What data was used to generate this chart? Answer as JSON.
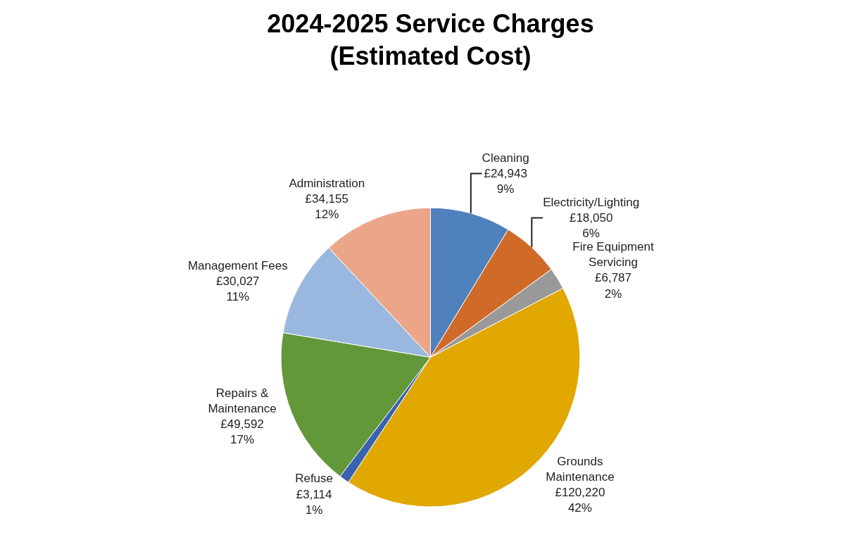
{
  "chart_data": {
    "type": "pie",
    "title": "2024-2025 Service Charges\n(Estimated Cost)",
    "categories": [
      "Cleaning",
      "Electricity/Lighting",
      "Fire Equipment Servicing",
      "Grounds Maintenance",
      "Refuse",
      "Repairs & Maintenance",
      "Management Fees",
      "Administration"
    ],
    "values": [
      24943,
      18050,
      6787,
      120220,
      3114,
      49592,
      30027,
      34155
    ],
    "value_labels": [
      "£24,943\n9%",
      "£18,050\n6%",
      "£6,787\n2%",
      "£120,220\n42%",
      "£3,114\n1%",
      "£49,592\n17%",
      "£30,027\n11%",
      "£34,155\n12%"
    ],
    "colors": [
      "#4f81bd",
      "#d06a28",
      "#999999",
      "#e0a800",
      "#3a62b0",
      "#62973a",
      "#9ab8df",
      "#eba68a"
    ],
    "legend": false
  }
}
